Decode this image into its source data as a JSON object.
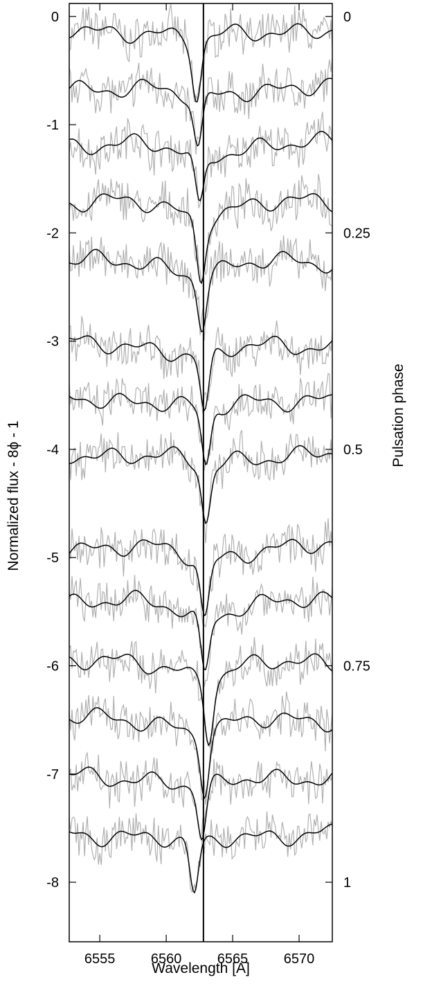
{
  "chart_data": {
    "type": "line",
    "xlabel": "Wavelength [A]",
    "ylabel": "Normalized flux - 8ϕ - 1",
    "y2label": "Pulsation phase",
    "xlim": [
      6552.7,
      6572.5
    ],
    "ylim": [
      -8.55,
      0.12
    ],
    "x_ticks": [
      6555,
      6560,
      6565,
      6570
    ],
    "x_tick_labels": [
      "6555",
      "6560",
      "6565",
      "6570"
    ],
    "y_ticks": [
      0,
      -1,
      -2,
      -3,
      -4,
      -5,
      -6,
      -7,
      -8
    ],
    "y_tick_labels": [
      "0",
      "-1",
      "-2",
      "-3",
      "-4",
      "-5",
      "-6",
      "-7",
      "-8"
    ],
    "y2_ticks": [
      0,
      0.25,
      0.5,
      0.75,
      1
    ],
    "y2_tick_labels": [
      "0",
      "0.25",
      "0.5",
      "0.75",
      "1"
    ],
    "reference_wavelength": 6562.8,
    "grid": false,
    "legend": "none",
    "colors": {
      "model": "#000000",
      "observed": "#b0b0b0",
      "reference": "#000000"
    },
    "series": [
      {
        "phase": 0.021,
        "continuum": -0.12,
        "min_x": 6562.3,
        "min_y": -0.76
      },
      {
        "phase": 0.087,
        "continuum": -0.65,
        "min_x": 6562.4,
        "min_y": -1.26
      },
      {
        "phase": 0.152,
        "continuum": -1.18,
        "min_x": 6562.5,
        "min_y": -1.78
      },
      {
        "phase": 0.217,
        "continuum": -1.72,
        "min_x": 6562.6,
        "min_y": -2.4
      },
      {
        "phase": 0.283,
        "continuum": -2.27,
        "min_x": 6562.7,
        "min_y": -2.84
      },
      {
        "phase": 0.378,
        "continuum": -3.03,
        "min_x": 6562.9,
        "min_y": -3.69
      },
      {
        "phase": 0.441,
        "continuum": -3.53,
        "min_x": 6563.0,
        "min_y": -4.19
      },
      {
        "phase": 0.505,
        "continuum": -4.04,
        "min_x": 6563.0,
        "min_y": -4.69
      },
      {
        "phase": 0.613,
        "continuum": -4.9,
        "min_x": 6562.9,
        "min_y": -5.58
      },
      {
        "phase": 0.676,
        "continuum": -5.41,
        "min_x": 6562.9,
        "min_y": -6.07
      },
      {
        "phase": 0.746,
        "continuum": -5.97,
        "min_x": 6563.2,
        "min_y": -6.64
      },
      {
        "phase": 0.811,
        "continuum": -6.49,
        "min_x": 6562.9,
        "min_y": -7.15
      },
      {
        "phase": 0.877,
        "continuum": -7.02,
        "min_x": 6562.7,
        "min_y": -7.63
      },
      {
        "phase": 0.942,
        "continuum": -7.55,
        "min_x": 6562.1,
        "min_y": -8.15
      }
    ]
  }
}
